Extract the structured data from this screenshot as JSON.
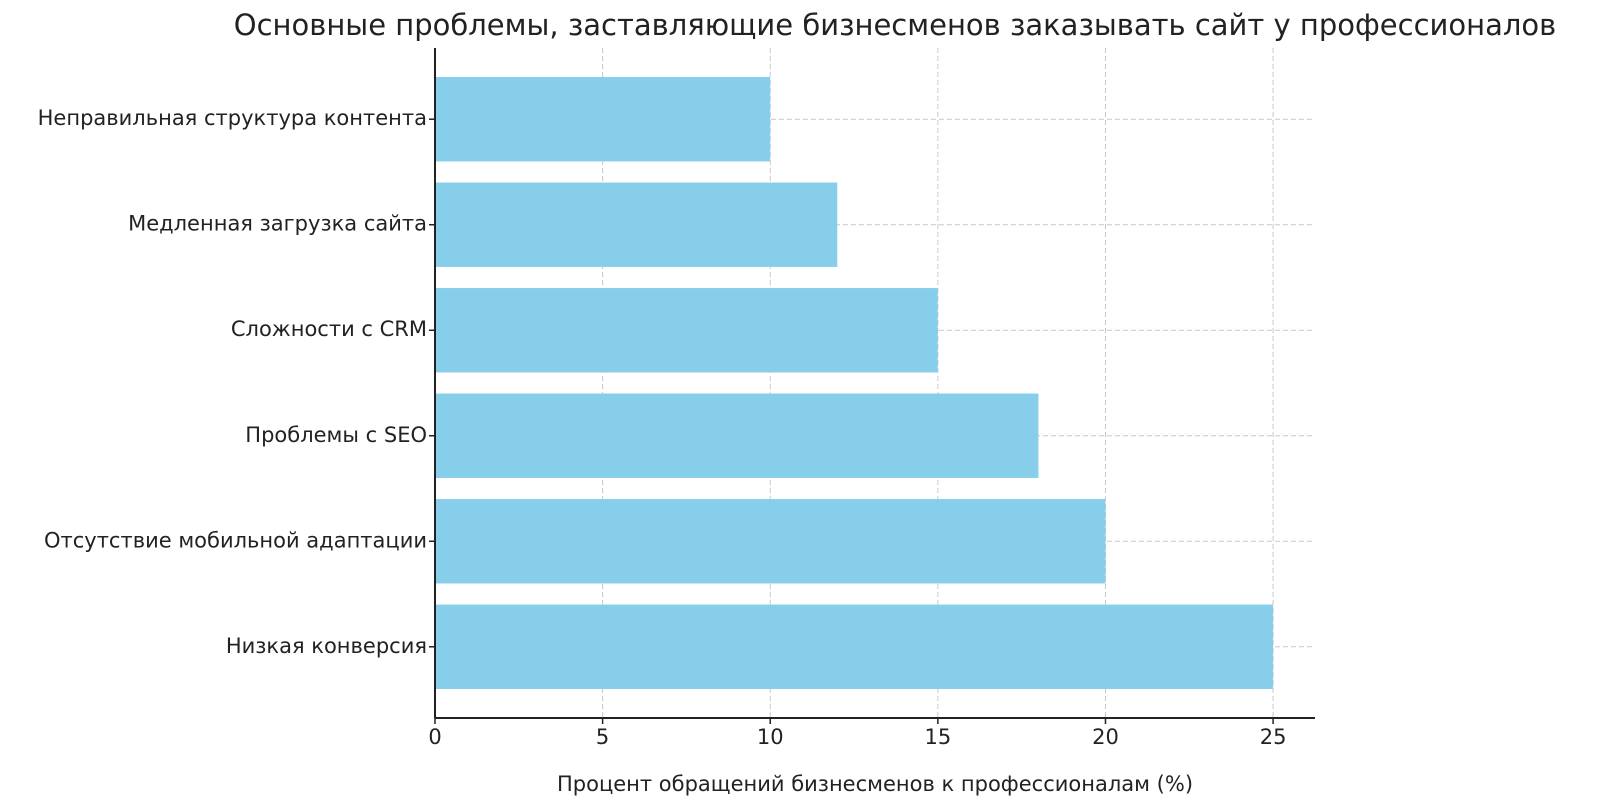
{
  "chart_data": {
    "type": "barh",
    "title": "Основные проблемы, заставляющие бизнесменов заказывать сайт у профессионалов",
    "x_label": "Процент обращений бизнесменов к профессионалам (%)",
    "categories": [
      "Низкая конверсия",
      "Отсутствие мобильной адаптации",
      "Проблемы с SEO",
      "Сложности с CRM",
      "Медленная загрузка сайта",
      "Неправильная структура контента"
    ],
    "values": [
      25,
      20,
      18,
      15,
      12,
      10
    ],
    "color": "#87ceeb",
    "xlim": [
      0,
      26.25
    ],
    "xticks": [
      0,
      5,
      10,
      15,
      20,
      25
    ],
    "grid": true
  }
}
